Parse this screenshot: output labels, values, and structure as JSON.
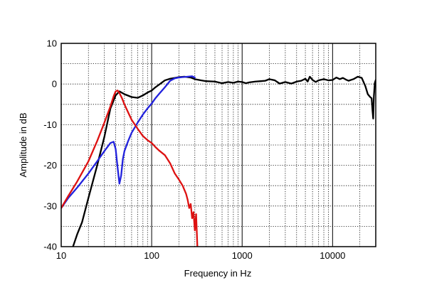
{
  "chart_data": {
    "type": "line",
    "title": "",
    "xlabel": "Frequency in Hz",
    "ylabel": "Amplitude in dB",
    "x_scale": "log",
    "xlim": [
      10,
      30000
    ],
    "ylim": [
      -40,
      10
    ],
    "x_ticks": [
      10,
      100,
      1000,
      10000
    ],
    "x_tick_labels": [
      "10",
      "100",
      "1000",
      "10000"
    ],
    "y_ticks": [
      10,
      0,
      -10,
      -20,
      -30,
      -40
    ],
    "y_tick_labels": [
      "10",
      "0",
      "-10",
      "-20",
      "-30",
      "-40"
    ],
    "grid": true,
    "legend": "none",
    "series": [
      {
        "color": "#000000",
        "points": [
          [
            13.5,
            -40
          ],
          [
            15,
            -37
          ],
          [
            17,
            -34
          ],
          [
            20,
            -28
          ],
          [
            25,
            -20
          ],
          [
            30,
            -13
          ],
          [
            35,
            -6
          ],
          [
            40,
            -2.8
          ],
          [
            44,
            -1.8
          ],
          [
            50,
            -2.5
          ],
          [
            60,
            -3.2
          ],
          [
            70,
            -3.4
          ],
          [
            80,
            -2.8
          ],
          [
            90,
            -2.1
          ],
          [
            100,
            -1.6
          ],
          [
            110,
            -0.8
          ],
          [
            120,
            -0.2
          ],
          [
            140,
            0.9
          ],
          [
            160,
            1.3
          ],
          [
            180,
            1.5
          ],
          [
            200,
            1.7
          ],
          [
            230,
            1.8
          ],
          [
            270,
            1.6
          ],
          [
            300,
            1.2
          ],
          [
            350,
            0.9
          ],
          [
            400,
            0.7
          ],
          [
            500,
            0.6
          ],
          [
            600,
            0.2
          ],
          [
            700,
            0.5
          ],
          [
            800,
            0.3
          ],
          [
            900,
            0.6
          ],
          [
            1000,
            0.5
          ],
          [
            1100,
            0.2
          ],
          [
            1200,
            0.4
          ],
          [
            1400,
            0.6
          ],
          [
            1600,
            0.7
          ],
          [
            1800,
            0.8
          ],
          [
            2000,
            1.2
          ],
          [
            2300,
            0.9
          ],
          [
            2600,
            0.1
          ],
          [
            3000,
            0.5
          ],
          [
            3500,
            0.1
          ],
          [
            4000,
            0.6
          ],
          [
            4500,
            0.8
          ],
          [
            5000,
            1.3
          ],
          [
            5300,
            0.6
          ],
          [
            5600,
            1.8
          ],
          [
            6000,
            1.0
          ],
          [
            6500,
            0.5
          ],
          [
            7000,
            0.9
          ],
          [
            8000,
            1.2
          ],
          [
            9000,
            0.9
          ],
          [
            10000,
            1.0
          ],
          [
            11000,
            1.6
          ],
          [
            12000,
            1.2
          ],
          [
            13000,
            1.5
          ],
          [
            14000,
            1.1
          ],
          [
            15000,
            0.8
          ],
          [
            17000,
            1.2
          ],
          [
            19000,
            1.8
          ],
          [
            21000,
            1.5
          ],
          [
            23000,
            -0.5
          ],
          [
            24500,
            -2.5
          ],
          [
            26000,
            -3.2
          ],
          [
            27000,
            -3.5
          ],
          [
            27600,
            -6.5
          ],
          [
            28100,
            -8.5
          ],
          [
            28600,
            -3
          ],
          [
            29300,
            0.3
          ],
          [
            30000,
            1
          ]
        ]
      },
      {
        "color": "#2222dd",
        "points": [
          [
            10,
            -30.5
          ],
          [
            12,
            -28
          ],
          [
            15,
            -25.5
          ],
          [
            20,
            -22
          ],
          [
            25,
            -19
          ],
          [
            30,
            -16.5
          ],
          [
            35,
            -14.5
          ],
          [
            38,
            -14.2
          ],
          [
            40,
            -16
          ],
          [
            42,
            -20.5
          ],
          [
            44,
            -24.5
          ],
          [
            46,
            -22.5
          ],
          [
            48,
            -18.5
          ],
          [
            50,
            -16.5
          ],
          [
            55,
            -14
          ],
          [
            60,
            -12
          ],
          [
            70,
            -9.5
          ],
          [
            80,
            -7.5
          ],
          [
            90,
            -6
          ],
          [
            100,
            -4.8
          ],
          [
            110,
            -3.5
          ],
          [
            120,
            -2.5
          ],
          [
            140,
            -0.8
          ],
          [
            160,
            0.8
          ],
          [
            180,
            1.4
          ],
          [
            200,
            1.6
          ],
          [
            220,
            1.7
          ],
          [
            250,
            1.8
          ],
          [
            280,
            1.9
          ],
          [
            300,
            1.6
          ]
        ]
      },
      {
        "color": "#dd1111",
        "points": [
          [
            10,
            -30.5
          ],
          [
            12,
            -27.5
          ],
          [
            15,
            -24
          ],
          [
            20,
            -19
          ],
          [
            25,
            -14
          ],
          [
            30,
            -9.5
          ],
          [
            35,
            -5.5
          ],
          [
            38,
            -3
          ],
          [
            40,
            -1.8
          ],
          [
            42,
            -1.6
          ],
          [
            44,
            -2.2
          ],
          [
            47,
            -3.5
          ],
          [
            50,
            -5
          ],
          [
            55,
            -7
          ],
          [
            60,
            -8.8
          ],
          [
            70,
            -11
          ],
          [
            80,
            -12.8
          ],
          [
            90,
            -13.8
          ],
          [
            100,
            -14.5
          ],
          [
            110,
            -15.5
          ],
          [
            120,
            -16.3
          ],
          [
            140,
            -17.5
          ],
          [
            160,
            -19.5
          ],
          [
            180,
            -22
          ],
          [
            200,
            -23.5
          ],
          [
            220,
            -25
          ],
          [
            240,
            -27
          ],
          [
            250,
            -28.5
          ],
          [
            260,
            -30.5
          ],
          [
            270,
            -29.5
          ],
          [
            280,
            -33
          ],
          [
            290,
            -31.5
          ],
          [
            300,
            -36
          ],
          [
            310,
            -32
          ],
          [
            320,
            -40
          ]
        ]
      }
    ]
  }
}
